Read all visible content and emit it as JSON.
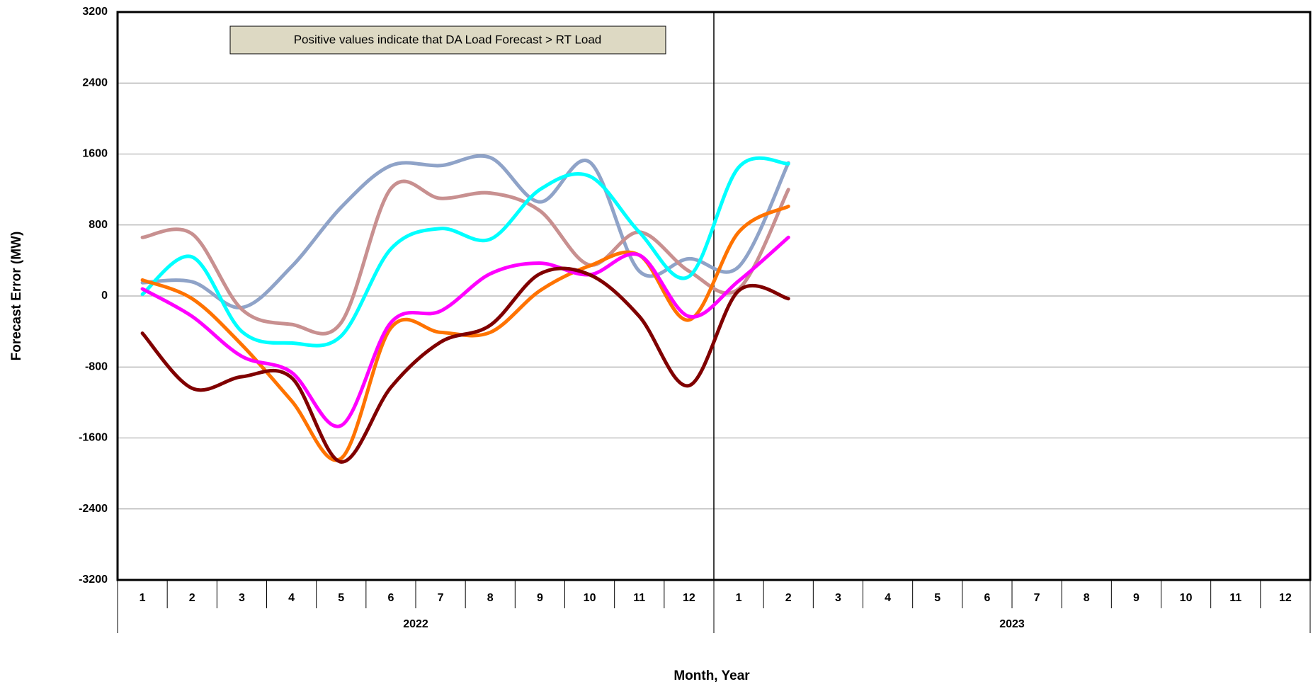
{
  "chart_data": {
    "type": "line",
    "annotation": "Positive values indicate that DA Load Forecast > RT Load",
    "x_label": "Month, Year",
    "y_label": "Forecast Error (MW)",
    "categories": [
      "1",
      "2",
      "3",
      "4",
      "5",
      "6",
      "7",
      "8",
      "9",
      "10",
      "11",
      "12",
      "1",
      "2",
      "3",
      "4",
      "5",
      "6",
      "7",
      "8",
      "9",
      "10",
      "11",
      "12"
    ],
    "category_groups": [
      "2022",
      "2023"
    ],
    "ylim": [
      -3200,
      3200
    ],
    "yticks": [
      -3200,
      -2400,
      -1600,
      -800,
      0,
      800,
      1600,
      2400,
      3200
    ],
    "grid": true,
    "series": [
      {
        "color": "#8fa3c8",
        "values": [
          150,
          160,
          -130,
          330,
          1000,
          1470,
          1470,
          1560,
          1060,
          1510,
          280,
          420,
          330,
          1500,
          null,
          null,
          null,
          null,
          null,
          null,
          null,
          null,
          null,
          null
        ]
      },
      {
        "color": "#c89090",
        "values": [
          660,
          700,
          -150,
          -320,
          -300,
          1210,
          1100,
          1160,
          960,
          350,
          720,
          280,
          80,
          1200,
          null,
          null,
          null,
          null,
          null,
          null,
          null,
          null,
          null,
          null
        ]
      },
      {
        "color": "#00ffff",
        "values": [
          20,
          440,
          -400,
          -530,
          -450,
          530,
          760,
          640,
          1200,
          1350,
          720,
          220,
          1450,
          1490,
          null,
          null,
          null,
          null,
          null,
          null,
          null,
          null,
          null,
          null
        ]
      },
      {
        "color": "#ff7300",
        "values": [
          180,
          -30,
          -550,
          -1180,
          -1830,
          -360,
          -410,
          -410,
          60,
          340,
          460,
          -270,
          720,
          1010,
          null,
          null,
          null,
          null,
          null,
          null,
          null,
          null,
          null,
          null
        ]
      },
      {
        "color": "#ff00ff",
        "values": [
          80,
          -230,
          -680,
          -860,
          -1460,
          -300,
          -170,
          250,
          370,
          240,
          460,
          -230,
          170,
          660,
          null,
          null,
          null,
          null,
          null,
          null,
          null,
          null,
          null,
          null
        ]
      },
      {
        "color": "#800000",
        "values": [
          -420,
          -1040,
          -910,
          -920,
          -1870,
          -1030,
          -520,
          -330,
          250,
          240,
          -230,
          -1010,
          60,
          -30,
          null,
          null,
          null,
          null,
          null,
          null,
          null,
          null,
          null,
          null
        ]
      }
    ]
  }
}
